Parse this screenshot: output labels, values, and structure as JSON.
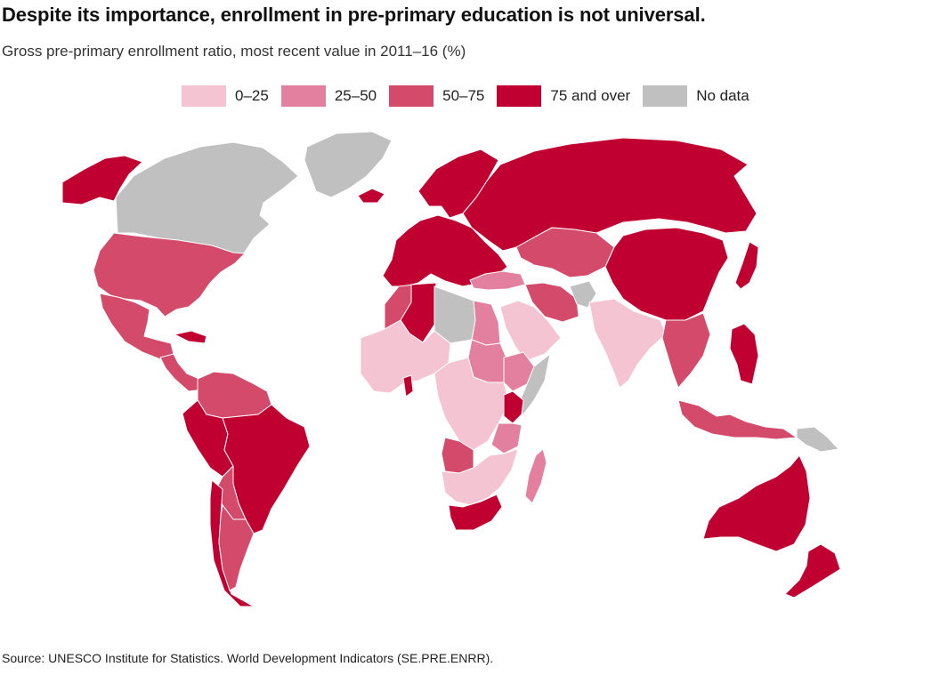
{
  "title": "Despite its importance, enrollment in pre-primary education is not universal.",
  "subtitle": "Gross pre-primary enrollment ratio, most recent value in 2011–16 (%)",
  "legend": [
    {
      "label": "0–25",
      "color": "#f5c4d2"
    },
    {
      "label": "25–50",
      "color": "#e4809f"
    },
    {
      "label": "50–75",
      "color": "#d34a6a"
    },
    {
      "label": "75 and over",
      "color": "#c10032"
    },
    {
      "label": "No data",
      "color": "#c0c0c0"
    }
  ],
  "source": "Source: UNESCO Institute for Statistics. World Development Indicators (SE.PRE.ENRR).",
  "map": {
    "regions": [
      {
        "name": "greenland",
        "category": "No data"
      },
      {
        "name": "canada",
        "category": "No data"
      },
      {
        "name": "alaska",
        "category": "75 and over"
      },
      {
        "name": "united-states",
        "category": "50–75"
      },
      {
        "name": "mexico",
        "category": "50–75"
      },
      {
        "name": "central-america",
        "category": "50–75"
      },
      {
        "name": "cuba",
        "category": "75 and over"
      },
      {
        "name": "colombia-venezuela",
        "category": "50–75"
      },
      {
        "name": "brazil",
        "category": "75 and over"
      },
      {
        "name": "peru",
        "category": "75 and over"
      },
      {
        "name": "bolivia-paraguay",
        "category": "50–75"
      },
      {
        "name": "argentina",
        "category": "50–75"
      },
      {
        "name": "chile",
        "category": "75 and over"
      },
      {
        "name": "western-europe",
        "category": "75 and over"
      },
      {
        "name": "iceland",
        "category": "75 and over"
      },
      {
        "name": "scandinavia",
        "category": "75 and over"
      },
      {
        "name": "russia",
        "category": "75 and over"
      },
      {
        "name": "kazakhstan",
        "category": "50–75"
      },
      {
        "name": "turkey",
        "category": "25–50"
      },
      {
        "name": "iran",
        "category": "50–75"
      },
      {
        "name": "afghanistan",
        "category": "No data"
      },
      {
        "name": "arabian-peninsula",
        "category": "0–25"
      },
      {
        "name": "india",
        "category": "0–25"
      },
      {
        "name": "china",
        "category": "75 and over"
      },
      {
        "name": "southeast-asia",
        "category": "50–75"
      },
      {
        "name": "japan",
        "category": "75 and over"
      },
      {
        "name": "philippines",
        "category": "75 and over"
      },
      {
        "name": "indonesia",
        "category": "50–75"
      },
      {
        "name": "papua-new-guinea",
        "category": "No data"
      },
      {
        "name": "algeria",
        "category": "75 and over"
      },
      {
        "name": "morocco",
        "category": "50–75"
      },
      {
        "name": "libya",
        "category": "No data"
      },
      {
        "name": "egypt",
        "category": "25–50"
      },
      {
        "name": "west-africa",
        "category": "0–25"
      },
      {
        "name": "ghana",
        "category": "75 and over"
      },
      {
        "name": "sudan",
        "category": "25–50"
      },
      {
        "name": "central-africa",
        "category": "0–25"
      },
      {
        "name": "ethiopia",
        "category": "25–50"
      },
      {
        "name": "somalia",
        "category": "No data"
      },
      {
        "name": "kenya",
        "category": "75 and over"
      },
      {
        "name": "tanzania",
        "category": "25–50"
      },
      {
        "name": "angola",
        "category": "50–75"
      },
      {
        "name": "southern-africa",
        "category": "0–25"
      },
      {
        "name": "south-africa",
        "category": "75 and over"
      },
      {
        "name": "madagascar",
        "category": "25–50"
      },
      {
        "name": "australia",
        "category": "75 and over"
      },
      {
        "name": "new-zealand",
        "category": "75 and over"
      }
    ]
  }
}
